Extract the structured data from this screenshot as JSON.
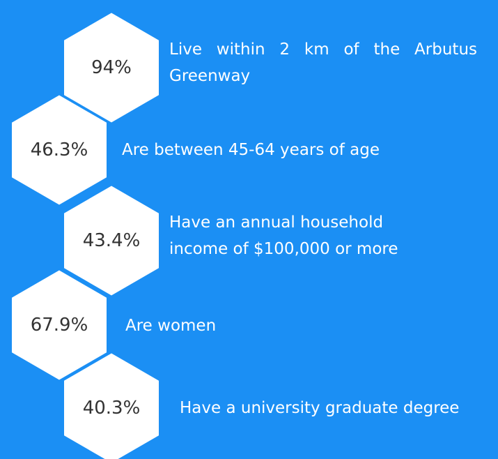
{
  "items": [
    {
      "value": "94%",
      "description": "Live within 2 km of the Arbutus Greenway"
    },
    {
      "value": "46.3%",
      "description": "Are between 45-64 years of age"
    },
    {
      "value": "43.4%",
      "description": "Have an annual household income of $100,000 or more"
    },
    {
      "value": "67.9%",
      "description": "Are women"
    },
    {
      "value": "40.3%",
      "description": "Have a university graduate degree"
    }
  ]
}
